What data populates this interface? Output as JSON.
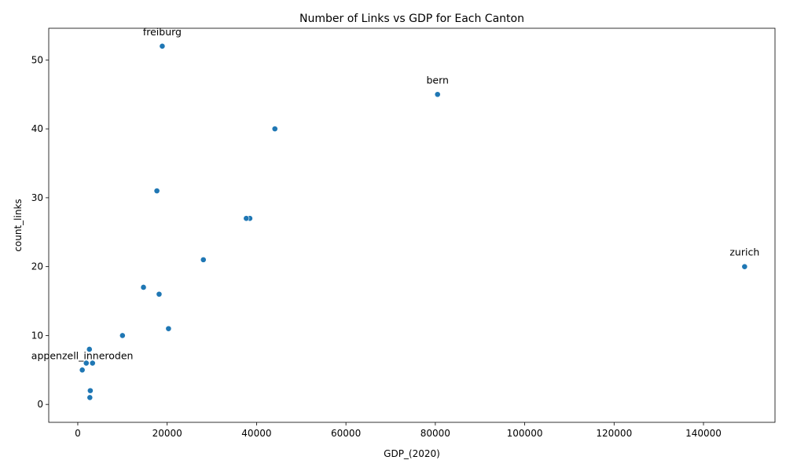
{
  "chart_data": {
    "type": "scatter",
    "title": "Number of Links vs GDP for Each Canton",
    "xlabel": "GDP_(2020)",
    "ylabel": "count_links",
    "xlim": [
      -6500,
      156000
    ],
    "ylim": [
      -2.6,
      54.6
    ],
    "xticks": [
      0,
      20000,
      40000,
      60000,
      80000,
      100000,
      120000,
      140000
    ],
    "yticks": [
      0,
      10,
      20,
      30,
      40,
      50
    ],
    "grid": false,
    "marker_color": "#1f77b4",
    "points": [
      {
        "x": 18900,
        "y": 52
      },
      {
        "x": 80500,
        "y": 45
      },
      {
        "x": 44100,
        "y": 40
      },
      {
        "x": 17700,
        "y": 31
      },
      {
        "x": 38500,
        "y": 27
      },
      {
        "x": 37700,
        "y": 27
      },
      {
        "x": 28100,
        "y": 21
      },
      {
        "x": 149200,
        "y": 20
      },
      {
        "x": 14700,
        "y": 17
      },
      {
        "x": 18200,
        "y": 16
      },
      {
        "x": 20300,
        "y": 11
      },
      {
        "x": 10000,
        "y": 10
      },
      {
        "x": 2600,
        "y": 8
      },
      {
        "x": 1900,
        "y": 6
      },
      {
        "x": 3300,
        "y": 6
      },
      {
        "x": 1000,
        "y": 5
      },
      {
        "x": 2800,
        "y": 2
      },
      {
        "x": 2700,
        "y": 1
      }
    ],
    "annotations": [
      {
        "text": "freiburg",
        "x": 18900,
        "y": 52
      },
      {
        "text": "bern",
        "x": 80500,
        "y": 45
      },
      {
        "text": "zurich",
        "x": 149200,
        "y": 20
      },
      {
        "text": "appenzell_inneroden",
        "x": 1000,
        "y": 5
      }
    ]
  }
}
